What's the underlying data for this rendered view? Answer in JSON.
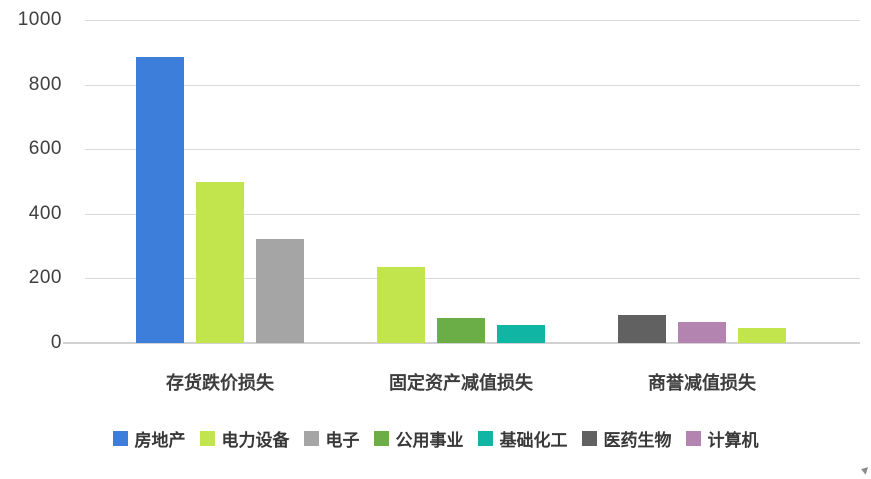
{
  "chart_data": {
    "type": "bar",
    "title": "",
    "xlabel": "",
    "ylabel": "",
    "categories": [
      "存货跌价损失",
      "固定资产减值损失",
      "商誉减值损失"
    ],
    "groups": [
      {
        "category": "存货跌价损失",
        "bars": [
          {
            "series": "房地产",
            "value": 886
          },
          {
            "series": "电力设备",
            "value": 497
          },
          {
            "series": "电子",
            "value": 322
          }
        ]
      },
      {
        "category": "固定资产减值损失",
        "bars": [
          {
            "series": "电力设备",
            "value": 235
          },
          {
            "series": "公用事业",
            "value": 76
          },
          {
            "series": "基础化工",
            "value": 56
          }
        ]
      },
      {
        "category": "商誉减值损失",
        "bars": [
          {
            "series": "医药生物",
            "value": 87
          },
          {
            "series": "计算机",
            "value": 64
          },
          {
            "series": "电力设备",
            "value": 47
          }
        ]
      }
    ],
    "legend": [
      {
        "label": "房地产",
        "color": "#3E7EDB"
      },
      {
        "label": "电力设备",
        "color": "#C2E44D"
      },
      {
        "label": "电子",
        "color": "#A5A5A5"
      },
      {
        "label": "公用事业",
        "color": "#6BAD47"
      },
      {
        "label": "基础化工",
        "color": "#11B5A4"
      },
      {
        "label": "医药生物",
        "color": "#616161"
      },
      {
        "label": "计算机",
        "color": "#B284AF"
      }
    ],
    "ylim": [
      0,
      1000
    ],
    "yticks": [
      0,
      200,
      400,
      600,
      800,
      1000
    ],
    "grid": true,
    "legend_position": "bottom"
  },
  "style": {
    "background": "#FFFFFF",
    "grid_color": "#D9D9D9",
    "axis_line_color": "#D2D2D2",
    "tick_text_color": "#404040",
    "label_text_color": "#3D3D3D"
  }
}
